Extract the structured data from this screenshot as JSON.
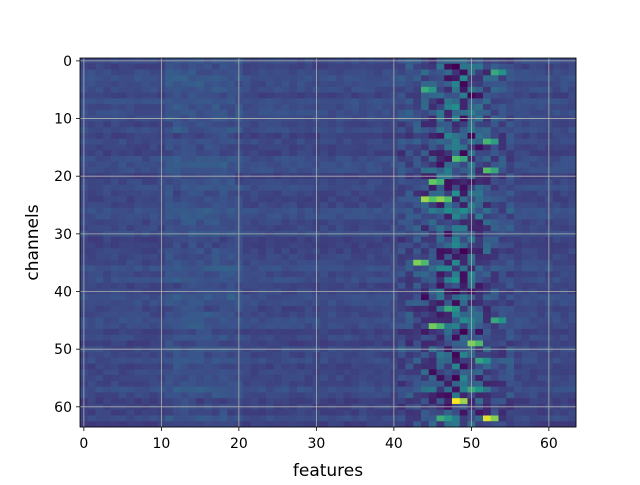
{
  "chart_data": {
    "type": "heatmap",
    "xlabel": "features",
    "ylabel": "channels",
    "n_cols": 64,
    "n_rows": 64,
    "x_range": [
      0,
      63
    ],
    "y_range": [
      0,
      63
    ],
    "y_inverted": true,
    "x_ticks": [
      "0",
      "10",
      "20",
      "30",
      "40",
      "50",
      "60"
    ],
    "y_ticks": [
      "0",
      "10",
      "20",
      "30",
      "40",
      "50",
      "60"
    ],
    "colormap": "viridis",
    "colormap_stops": [
      "#440154",
      "#3b528b",
      "#21918c",
      "#5ec962",
      "#fde725"
    ],
    "grid": true,
    "grid_color": "#b0b0b0",
    "hotspots": [
      {
        "col": 48,
        "row": 59,
        "value": 1.0
      },
      {
        "col": 52,
        "row": 62,
        "value": 0.95
      },
      {
        "col": 44,
        "row": 24,
        "value": 0.85
      },
      {
        "col": 46,
        "row": 24,
        "value": 0.82
      },
      {
        "col": 43,
        "row": 35,
        "value": 0.8
      },
      {
        "col": 45,
        "row": 46,
        "value": 0.78
      },
      {
        "col": 50,
        "row": 49,
        "value": 0.8
      },
      {
        "col": 45,
        "row": 21,
        "value": 0.75
      },
      {
        "col": 48,
        "row": 17,
        "value": 0.7
      },
      {
        "col": 52,
        "row": 19,
        "value": 0.7
      },
      {
        "col": 52,
        "row": 14,
        "value": 0.65
      },
      {
        "col": 44,
        "row": 5,
        "value": 0.62
      },
      {
        "col": 53,
        "row": 2,
        "value": 0.6
      },
      {
        "col": 47,
        "row": 43,
        "value": 0.6
      },
      {
        "col": 53,
        "row": 45,
        "value": 0.6
      },
      {
        "col": 46,
        "row": 62,
        "value": 0.62
      },
      {
        "col": 50,
        "row": 57,
        "value": 0.6
      },
      {
        "col": 51,
        "row": 52,
        "value": 0.58
      }
    ],
    "lowspots": [
      {
        "col": 48,
        "row": 1,
        "value": 0.0
      },
      {
        "col": 50,
        "row": 6,
        "value": 0.02
      },
      {
        "col": 46,
        "row": 18,
        "value": 0.05
      },
      {
        "col": 47,
        "row": 22,
        "value": 0.05
      },
      {
        "col": 44,
        "row": 41,
        "value": 0.03
      },
      {
        "col": 49,
        "row": 38,
        "value": 0.05
      },
      {
        "col": 51,
        "row": 47,
        "value": 0.05
      },
      {
        "col": 45,
        "row": 54,
        "value": 0.03
      },
      {
        "col": 47,
        "row": 30,
        "value": 0.05
      }
    ]
  }
}
